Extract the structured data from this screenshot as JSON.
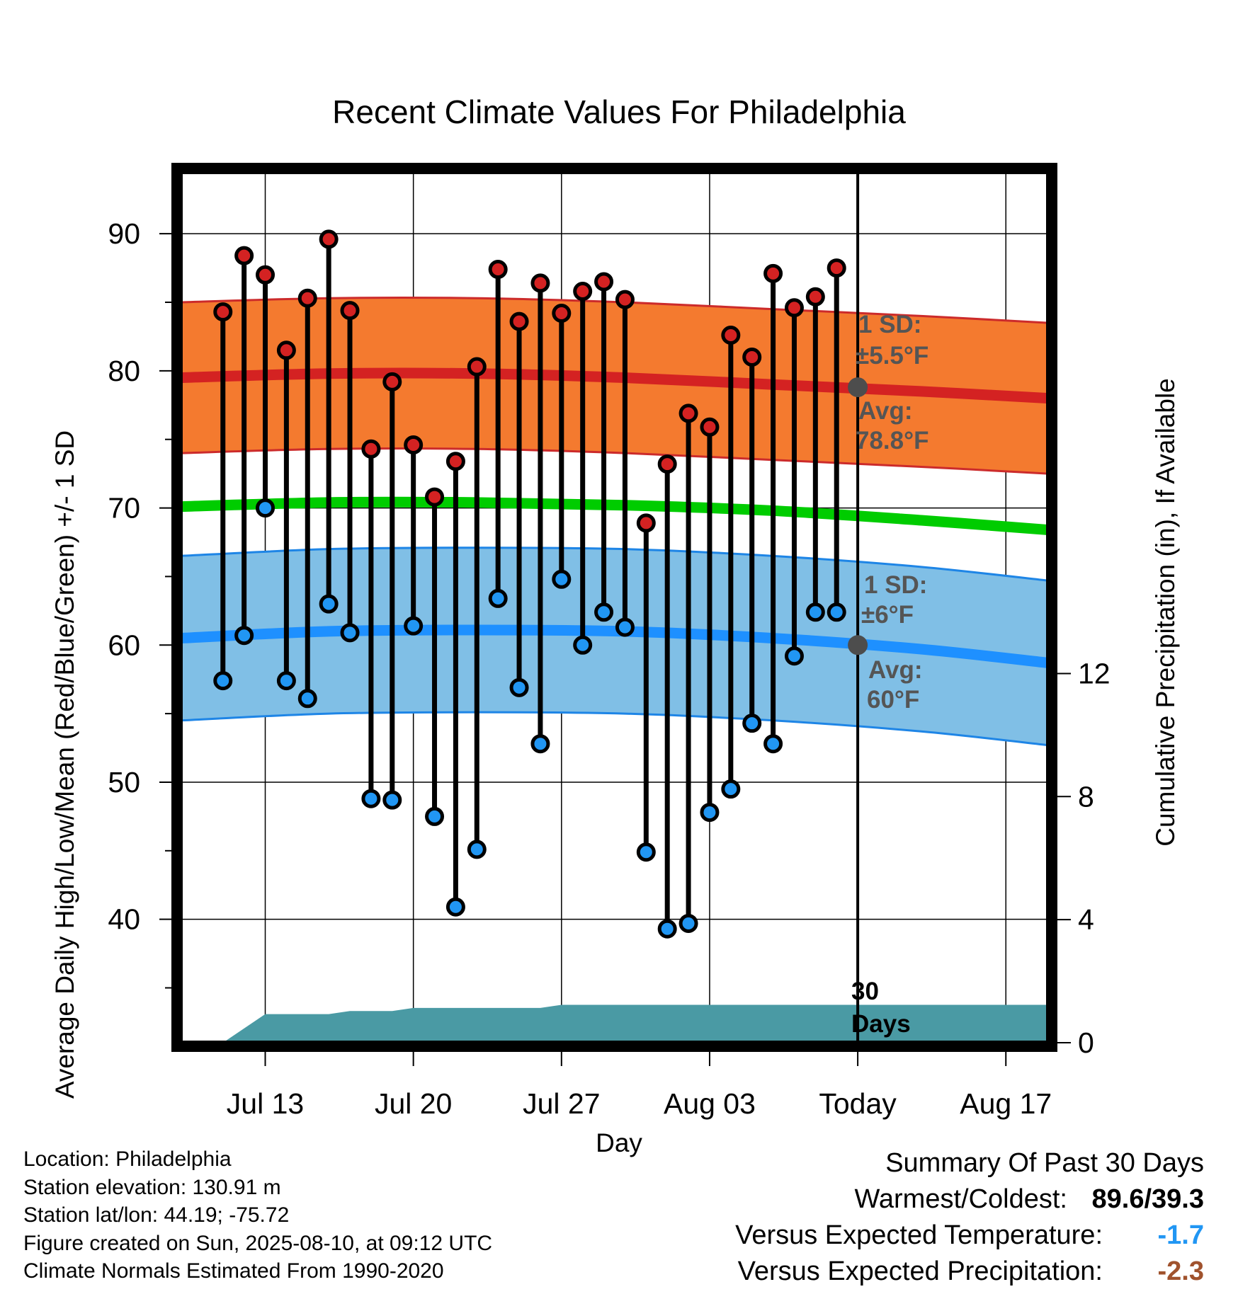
{
  "chart_data": {
    "type": "line",
    "title": "Recent Climate Values For Philadelphia",
    "xlabel": "Day",
    "ylabel": "Average Daily High/Low/Mean (Red/Blue/Green) +/- 1 SD",
    "ylabel_right": "Cumulative Precipitation (in), If Available",
    "ylim": [
      31,
      94.5
    ],
    "ylim_right": [
      0,
      28.3
    ],
    "yticks": [
      "90",
      "80",
      "70",
      "60",
      "50",
      "40"
    ],
    "yticks_right": [
      "12",
      "8",
      "4",
      "0"
    ],
    "xlim": [
      "2025-07-09",
      "2025-08-19"
    ],
    "xticks": [
      {
        "date": "2025-07-13",
        "label": "Jul 13"
      },
      {
        "date": "2025-07-20",
        "label": "Jul 20"
      },
      {
        "date": "2025-07-27",
        "label": "Jul 27"
      },
      {
        "date": "2025-08-03",
        "label": "Aug 03"
      },
      {
        "date": "2025-08-10",
        "label": "Today"
      },
      {
        "date": "2025-08-17",
        "label": "Aug 17"
      }
    ],
    "grid": true,
    "today": "2025-08-10",
    "days": [
      "2025-07-11",
      "2025-07-12",
      "2025-07-13",
      "2025-07-14",
      "2025-07-15",
      "2025-07-16",
      "2025-07-17",
      "2025-07-18",
      "2025-07-19",
      "2025-07-20",
      "2025-07-21",
      "2025-07-22",
      "2025-07-23",
      "2025-07-24",
      "2025-07-25",
      "2025-07-26",
      "2025-07-27",
      "2025-07-28",
      "2025-07-29",
      "2025-07-30",
      "2025-07-31",
      "2025-08-01",
      "2025-08-02",
      "2025-08-03",
      "2025-08-04",
      "2025-08-05",
      "2025-08-06",
      "2025-08-07",
      "2025-08-08",
      "2025-08-09"
    ],
    "highs": [
      84.3,
      88.4,
      87.0,
      81.5,
      85.3,
      89.6,
      84.4,
      74.3,
      79.2,
      74.6,
      70.8,
      73.4,
      80.3,
      87.4,
      83.6,
      86.4,
      84.2,
      85.8,
      86.5,
      85.2,
      68.9,
      73.2,
      76.9,
      75.9,
      82.6,
      81.0,
      87.1,
      84.6,
      85.4,
      87.5
    ],
    "lows": [
      57.4,
      60.7,
      70.0,
      57.4,
      56.1,
      63.0,
      60.9,
      48.8,
      48.7,
      61.4,
      47.5,
      40.9,
      45.1,
      63.4,
      56.9,
      52.8,
      64.8,
      60.0,
      62.4,
      61.3,
      44.9,
      39.3,
      39.7,
      47.8,
      49.5,
      54.3,
      52.8,
      59.2,
      62.4,
      62.4
    ],
    "normal_band_dates": [
      "2025-07-09",
      "2025-07-16",
      "2025-07-23",
      "2025-07-30",
      "2025-08-06",
      "2025-08-13",
      "2025-08-19"
    ],
    "normal_high": [
      79.5,
      79.8,
      79.8,
      79.5,
      79.0,
      78.5,
      78.0
    ],
    "normal_high_sd": 5.5,
    "normal_mean": [
      70.1,
      70.4,
      70.4,
      70.2,
      69.8,
      69.1,
      68.4
    ],
    "normal_low": [
      60.5,
      61.0,
      61.1,
      61.0,
      60.5,
      59.7,
      58.7
    ],
    "normal_low_sd": 6.0,
    "cumulative_precip": [
      {
        "date": "2025-07-09",
        "value": 0.0
      },
      {
        "date": "2025-07-10",
        "value": 0.0
      },
      {
        "date": "2025-07-11",
        "value": 0.0
      },
      {
        "date": "2025-07-13",
        "value": 0.93
      },
      {
        "date": "2025-07-16",
        "value": 0.93
      },
      {
        "date": "2025-07-17",
        "value": 1.03
      },
      {
        "date": "2025-07-19",
        "value": 1.03
      },
      {
        "date": "2025-07-20",
        "value": 1.13
      },
      {
        "date": "2025-07-26",
        "value": 1.13
      },
      {
        "date": "2025-07-27",
        "value": 1.23
      },
      {
        "date": "2025-08-19",
        "value": 1.23
      }
    ],
    "annotations": {
      "high_sd_label": "1 SD:",
      "high_sd_value": "±5.5°F",
      "high_avg_label": "Avg:",
      "high_avg_value": "78.8°F",
      "low_sd_label": "1 SD:",
      "low_sd_value": "±6°F",
      "low_avg_label": "Avg:",
      "low_avg_value": "60°F",
      "days_number": "30",
      "days_word": "Days",
      "today_high_avg": 78.8,
      "today_low_avg": 60.0
    }
  },
  "metadata": {
    "location": "Location: Philadelphia",
    "elevation": "Station elevation: 130.91 m",
    "latlon": "Station lat/lon: 44.19; -75.72",
    "created": "Figure created on Sun, 2025-08-10, at 09:12 UTC",
    "normals": "Climate Normals Estimated From 1990-2020"
  },
  "summary": {
    "heading": "Summary Of Past 30 Days",
    "warm_cold_label": "Warmest/Coldest:",
    "warm_cold_value": "89.6/39.3",
    "temp_label": "Versus Expected Temperature:",
    "temp_value": "-1.7",
    "precip_label": "Versus Expected Precipitation:",
    "precip_value": "-2.3"
  },
  "colors": {
    "high_band": "#f47a2f",
    "high_line": "#d42222",
    "high_edge": "#cc2b2b",
    "low_band": "#80bfe6",
    "low_line": "#1e90ff",
    "low_edge": "#1e85e6",
    "mean_line": "#00cc00",
    "precip_fill": "#4a9aa4",
    "high_marker": "#d42222",
    "low_marker": "#2196f3",
    "annotation_text": "#555555",
    "temp_value": "#2196f3",
    "precip_value": "#a0522d"
  }
}
